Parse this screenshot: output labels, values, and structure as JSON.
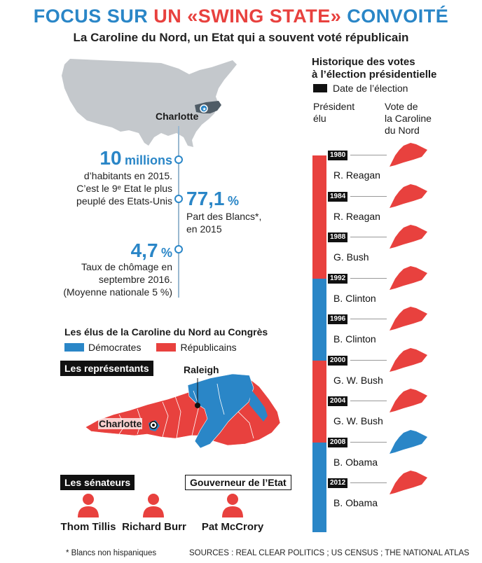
{
  "header": {
    "title_part1": "FOCUS SUR",
    "title_part2": "UN «SWING STATE»",
    "title_part3": "CONVOITÉ",
    "subtitle": "La Caroline du Nord, un Etat qui a souvent voté républicain"
  },
  "map_top": {
    "city_label": "Charlotte"
  },
  "stats": {
    "population_value": "10",
    "population_unit": "millions",
    "population_line1": "d’habitants en 2015.",
    "population_line2": "C’est le 9ᵉ Etat le plus",
    "population_line3": "peuplé des Etats-Unis",
    "whites_value": "77,1",
    "whites_unit": "%",
    "whites_line1": "Part des Blancs*,",
    "whites_line2": "en 2015",
    "unemployment_value": "4,7",
    "unemployment_unit": "%",
    "unemployment_line1": "Taux de chômage en",
    "unemployment_line2": "septembre  2016.",
    "unemployment_line3": "(Moyenne nationale 5 %)"
  },
  "congress": {
    "heading": "Les élus de la Caroline du Nord au Congrès",
    "legend_dem": "Démocrates",
    "legend_rep": "Républicains",
    "representatives_label": "Les représentants",
    "city_raleigh": "Raleigh",
    "city_charlotte": "Charlotte",
    "senators_label": "Les sénateurs",
    "governor_label": "Gouverneur de l’Etat",
    "senators": [
      "Thom Tillis",
      "Richard Burr"
    ],
    "governor": "Pat McCrory"
  },
  "history": {
    "title_line1": "Historique des votes",
    "title_line2": "à l’élection présidentielle",
    "legend_date": "Date de l’élection",
    "col_president_1": "Président",
    "col_president_2": "élu",
    "col_state_1": "Vote de",
    "col_state_2": "la Caroline",
    "col_state_3": "du Nord",
    "elections": [
      {
        "year": "1980",
        "president": "R. Reagan",
        "winner_party": "rep",
        "nc_vote": "rep"
      },
      {
        "year": "1984",
        "president": "R. Reagan",
        "winner_party": "rep",
        "nc_vote": "rep"
      },
      {
        "year": "1988",
        "president": "G. Bush",
        "winner_party": "rep",
        "nc_vote": "rep"
      },
      {
        "year": "1992",
        "president": "B. Clinton",
        "winner_party": "dem",
        "nc_vote": "rep"
      },
      {
        "year": "1996",
        "president": "B. Clinton",
        "winner_party": "dem",
        "nc_vote": "rep"
      },
      {
        "year": "2000",
        "president": "G. W. Bush",
        "winner_party": "rep",
        "nc_vote": "rep"
      },
      {
        "year": "2004",
        "president": "G. W. Bush",
        "winner_party": "rep",
        "nc_vote": "rep"
      },
      {
        "year": "2008",
        "president": "B. Obama",
        "winner_party": "dem",
        "nc_vote": "dem"
      },
      {
        "year": "2012",
        "president": "B. Obama",
        "winner_party": "dem",
        "nc_vote": "rep"
      }
    ]
  },
  "colors": {
    "dem": "#2a86c7",
    "rep": "#e8413e",
    "map_gray": "#c4c8cc",
    "nc_dark": "#4f5c66"
  },
  "footer": {
    "footnote": "* Blancs non hispaniques",
    "sources": "SOURCES : REAL CLEAR POLITICS ; US CENSUS ; THE NATIONAL ATLAS"
  }
}
